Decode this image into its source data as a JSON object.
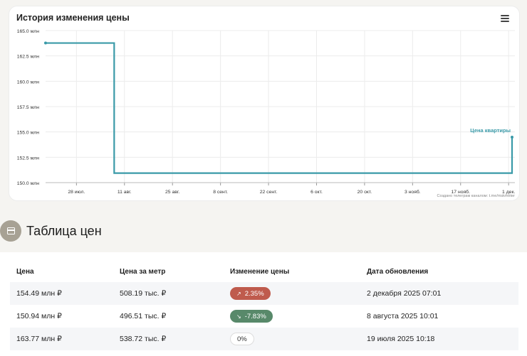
{
  "chart": {
    "title": "История изменения цены",
    "credit": "Создано телеграм каналом: t.me/mskmeter",
    "menu_icon": "hamburger-icon"
  },
  "chart_data": {
    "type": "line",
    "title": "История изменения цены",
    "series": [
      {
        "name": "Цена квартиры",
        "color": "#3a9aa8",
        "points": [
          {
            "x": "2025-07-19",
            "y": 163.77
          },
          {
            "x": "2025-08-08",
            "y": 163.77
          },
          {
            "x": "2025-08-08",
            "y": 150.94
          },
          {
            "x": "2025-12-02",
            "y": 150.94
          },
          {
            "x": "2025-12-02",
            "y": 154.49
          }
        ]
      }
    ],
    "ylim": [
      150,
      165
    ],
    "y_ticks": [
      "150.0 млн",
      "152.5 млн",
      "155.0 млн",
      "157.5 млн",
      "160.0 млн",
      "162.5 млн",
      "165.0 млн"
    ],
    "x_ticks": [
      "28 июл.",
      "11 авг.",
      "25 авг.",
      "8 сент.",
      "22 сент.",
      "6 окт.",
      "20 окт.",
      "3 нояб.",
      "17 нояб.",
      "1 дек."
    ],
    "x_tick_dates": [
      "2025-07-28",
      "2025-08-11",
      "2025-08-25",
      "2025-09-08",
      "2025-09-22",
      "2025-10-06",
      "2025-10-20",
      "2025-11-03",
      "2025-11-17",
      "2025-12-01"
    ],
    "xlim": [
      "2025-07-19",
      "2025-12-02"
    ],
    "grid": true
  },
  "section": {
    "title": "Таблица цен",
    "icon": "calendar-icon"
  },
  "table": {
    "headers": {
      "price": "Цена",
      "per_meter": "Цена за метр",
      "change": "Изменение цены",
      "date": "Дата обновления"
    },
    "rows": [
      {
        "price": "154.49 млн ₽",
        "per_meter": "508.19 тыс. ₽",
        "change": "2.35%",
        "direction": "up",
        "date": "2 декабря 2025 07:01"
      },
      {
        "price": "150.94 млн ₽",
        "per_meter": "496.51 тыс. ₽",
        "change": "-7.83%",
        "direction": "down",
        "date": "8 августа 2025 10:01"
      },
      {
        "price": "163.77 млн ₽",
        "per_meter": "538.72 тыс. ₽",
        "change": "0%",
        "direction": "neutral",
        "date": "19 июля 2025 10:18"
      }
    ]
  }
}
